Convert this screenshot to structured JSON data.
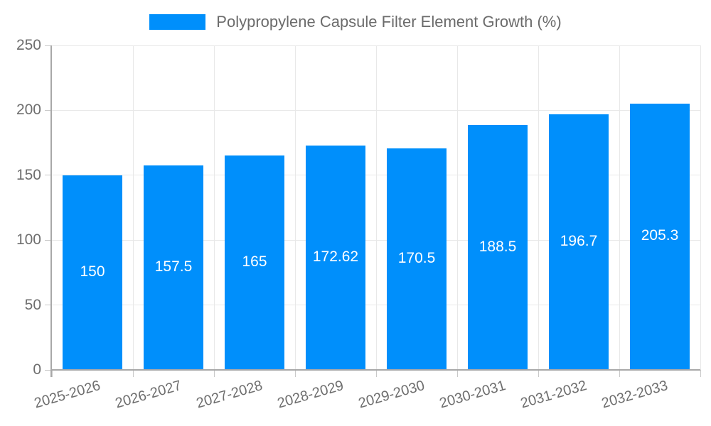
{
  "chart_data": {
    "type": "bar",
    "title": "Polypropylene Capsule Filter Element Growth (%)",
    "categories": [
      "2025-2026",
      "2026-2027",
      "2027-2028",
      "2028-2029",
      "2029-2030",
      "2030-2031",
      "2031-2032",
      "2032-2033"
    ],
    "values": [
      150,
      157.5,
      165,
      172.62,
      170.5,
      188.5,
      196.7,
      205.3
    ],
    "bar_labels": [
      "150",
      "157.5",
      "165",
      "172.62",
      "170.5",
      "188.5",
      "196.7",
      "205.3"
    ],
    "xlabel": "",
    "ylabel": "",
    "ylim": [
      0,
      250
    ],
    "yticks": [
      0,
      50,
      100,
      150,
      200,
      250
    ],
    "grid": true,
    "legend_position": "top",
    "colors": {
      "bar": "#008FFB",
      "grid": "#E8E8E8",
      "axis": "#A8A8A8",
      "tick": "#C9C9C9",
      "text": "#6E6E6E",
      "bar_label": "#FFFFFF",
      "background": "#FFFFFF"
    }
  }
}
